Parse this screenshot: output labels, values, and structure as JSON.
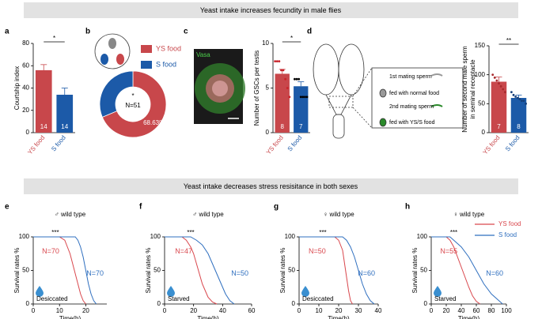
{
  "banners": [
    "Yeast intake increases fecundity in male flies",
    "Yeast intake decreases stress resisitance in both sexes"
  ],
  "diagram": {
    "items": [
      "1st mating sperm",
      "fed with normal food",
      "2nd mating sperm",
      "fed with YS/S food"
    ]
  },
  "chart_data": [
    {
      "panel": "a",
      "type": "bar",
      "y_label": [
        "Courtship index"
      ],
      "categories": [
        "YS food",
        "S food"
      ],
      "colors": [
        "#c8474b",
        "#1c5aa8"
      ],
      "values": [
        56,
        34
      ],
      "errors": [
        5,
        6
      ],
      "n_labels": [
        "14",
        "14"
      ],
      "significance": "*",
      "ylim": [
        0,
        80
      ],
      "yticks": [
        0,
        20,
        40,
        60,
        80
      ]
    },
    {
      "panel": "b",
      "type": "pie",
      "categories": [
        "YS food",
        "S food"
      ],
      "colors": [
        "#c8474b",
        "#1c5aa8"
      ],
      "values": [
        68.63,
        31.37
      ],
      "value_labels": [
        "68.63%",
        null
      ],
      "center_label": "N=51",
      "significance": "*"
    },
    {
      "panel": "c",
      "type": "bar",
      "image_label": "Vasa",
      "y_label": [
        "Number of GSCs per testis"
      ],
      "categories": [
        "YS food",
        "S food"
      ],
      "colors": [
        "#c8474b",
        "#1c5aa8"
      ],
      "values": [
        6.6,
        5.2
      ],
      "errors": [
        0.5,
        0.5
      ],
      "points": [
        [
          8,
          8,
          8,
          7,
          7,
          6,
          5,
          4
        ],
        [
          6,
          6,
          6,
          4,
          4,
          4,
          4
        ]
      ],
      "point_colors": [
        "#c8232a",
        "#000000"
      ],
      "n_labels": [
        "8",
        "7"
      ],
      "significance": "*",
      "ylim": [
        0,
        10
      ],
      "yticks": [
        0,
        5,
        10
      ]
    },
    {
      "panel": "d",
      "type": "bar",
      "y_label": [
        "Number of  second male sperm",
        "in seminal receptacle"
      ],
      "categories": [
        "YS food",
        "S food"
      ],
      "colors": [
        "#c8474b",
        "#1c5aa8"
      ],
      "values": [
        88,
        60
      ],
      "errors": [
        8,
        5
      ],
      "points": [
        [
          100,
          95,
          90,
          85,
          80,
          75,
          70
        ],
        [
          70,
          65,
          62,
          60,
          58,
          55,
          55,
          50
        ]
      ],
      "point_colors": [
        "#a82a2d",
        "#153f7a"
      ],
      "n_labels": [
        "7",
        "8"
      ],
      "significance": "**",
      "ylim": [
        0,
        150
      ],
      "yticks": [
        0,
        50,
        100,
        150
      ]
    },
    {
      "panel": "e",
      "type": "line",
      "title": "♂ wild type",
      "x_label": "Time(h)",
      "y_label": [
        "Survival rates %"
      ],
      "condition": "Desiccated",
      "significance": "***",
      "series": [
        {
          "color": "#d9474d",
          "x": [
            0,
            10,
            12,
            13,
            14,
            15,
            16,
            17,
            18,
            19,
            20
          ],
          "values": [
            100,
            100,
            95,
            85,
            75,
            60,
            45,
            30,
            15,
            5,
            0
          ],
          "n_label": "N=70"
        },
        {
          "color": "#2f6fbf",
          "x": [
            0,
            16,
            17,
            18,
            19,
            20,
            21,
            22,
            23,
            24
          ],
          "values": [
            100,
            100,
            95,
            85,
            70,
            50,
            30,
            15,
            5,
            0
          ],
          "n_label": "N=70"
        }
      ],
      "xlim": [
        0,
        28
      ],
      "xticks": [
        0,
        10,
        20
      ],
      "ylim": [
        0,
        100
      ],
      "yticks": [
        0,
        50,
        100
      ]
    },
    {
      "panel": "f",
      "type": "line",
      "title": "♂ wild type",
      "x_label": "Time(h)",
      "y_label": [
        "Survival rates %"
      ],
      "condition": "Starved",
      "significance": "***",
      "series": [
        {
          "color": "#d9474d",
          "x": [
            0,
            12,
            15,
            18,
            20,
            22,
            24,
            26,
            28,
            30,
            33,
            36
          ],
          "values": [
            100,
            100,
            95,
            85,
            75,
            60,
            45,
            30,
            20,
            10,
            3,
            0
          ],
          "n_label": "N=47"
        },
        {
          "color": "#2f6fbf",
          "x": [
            0,
            18,
            22,
            26,
            30,
            33,
            36,
            39,
            42,
            45,
            48
          ],
          "values": [
            100,
            100,
            95,
            88,
            75,
            60,
            45,
            30,
            15,
            5,
            0
          ],
          "n_label": "N=50"
        }
      ],
      "xlim": [
        0,
        60
      ],
      "xticks": [
        0,
        20,
        40,
        60
      ],
      "ylim": [
        0,
        100
      ],
      "yticks": [
        0,
        50,
        100
      ]
    },
    {
      "panel": "g",
      "type": "line",
      "title": "♀ wild type",
      "x_label": "Time(h)",
      "y_label": [
        "Survival rates %"
      ],
      "condition": "Desiccated",
      "significance": "***",
      "series": [
        {
          "color": "#d9474d",
          "x": [
            0,
            18,
            20,
            22,
            23,
            24,
            25,
            26,
            27
          ],
          "values": [
            100,
            100,
            95,
            80,
            60,
            40,
            20,
            5,
            0
          ],
          "n_label": "N=50"
        },
        {
          "color": "#2f6fbf",
          "x": [
            0,
            22,
            24,
            26,
            28,
            30,
            32,
            34,
            36,
            38
          ],
          "values": [
            100,
            100,
            95,
            85,
            70,
            50,
            30,
            15,
            5,
            0
          ],
          "n_label": "N=60"
        }
      ],
      "xlim": [
        0,
        40
      ],
      "xticks": [
        0,
        10,
        20,
        30,
        40
      ],
      "ylim": [
        0,
        100
      ],
      "yticks": [
        0,
        50,
        100
      ]
    },
    {
      "panel": "h",
      "type": "line",
      "title": "♀ wild type",
      "x_label": "Time(h)",
      "y_label": [
        "Survival rates %"
      ],
      "condition": "Starved",
      "significance": "***",
      "legend": "top-right",
      "series": [
        {
          "name": "YS food",
          "color": "#d9474d",
          "x": [
            0,
            20,
            25,
            30,
            35,
            40,
            45,
            50,
            55,
            60,
            65
          ],
          "values": [
            100,
            100,
            95,
            85,
            70,
            55,
            40,
            25,
            12,
            4,
            0
          ],
          "n_label": "N=55"
        },
        {
          "name": "S food",
          "color": "#2f6fbf",
          "x": [
            0,
            25,
            30,
            40,
            50,
            60,
            70,
            80,
            90,
            95
          ],
          "values": [
            100,
            100,
            95,
            85,
            70,
            50,
            30,
            15,
            5,
            0
          ],
          "n_label": "N=60"
        }
      ],
      "xlim": [
        0,
        100
      ],
      "xticks": [
        0,
        20,
        40,
        60,
        80,
        100
      ],
      "ylim": [
        0,
        100
      ],
      "yticks": [
        0,
        50,
        100
      ]
    }
  ]
}
